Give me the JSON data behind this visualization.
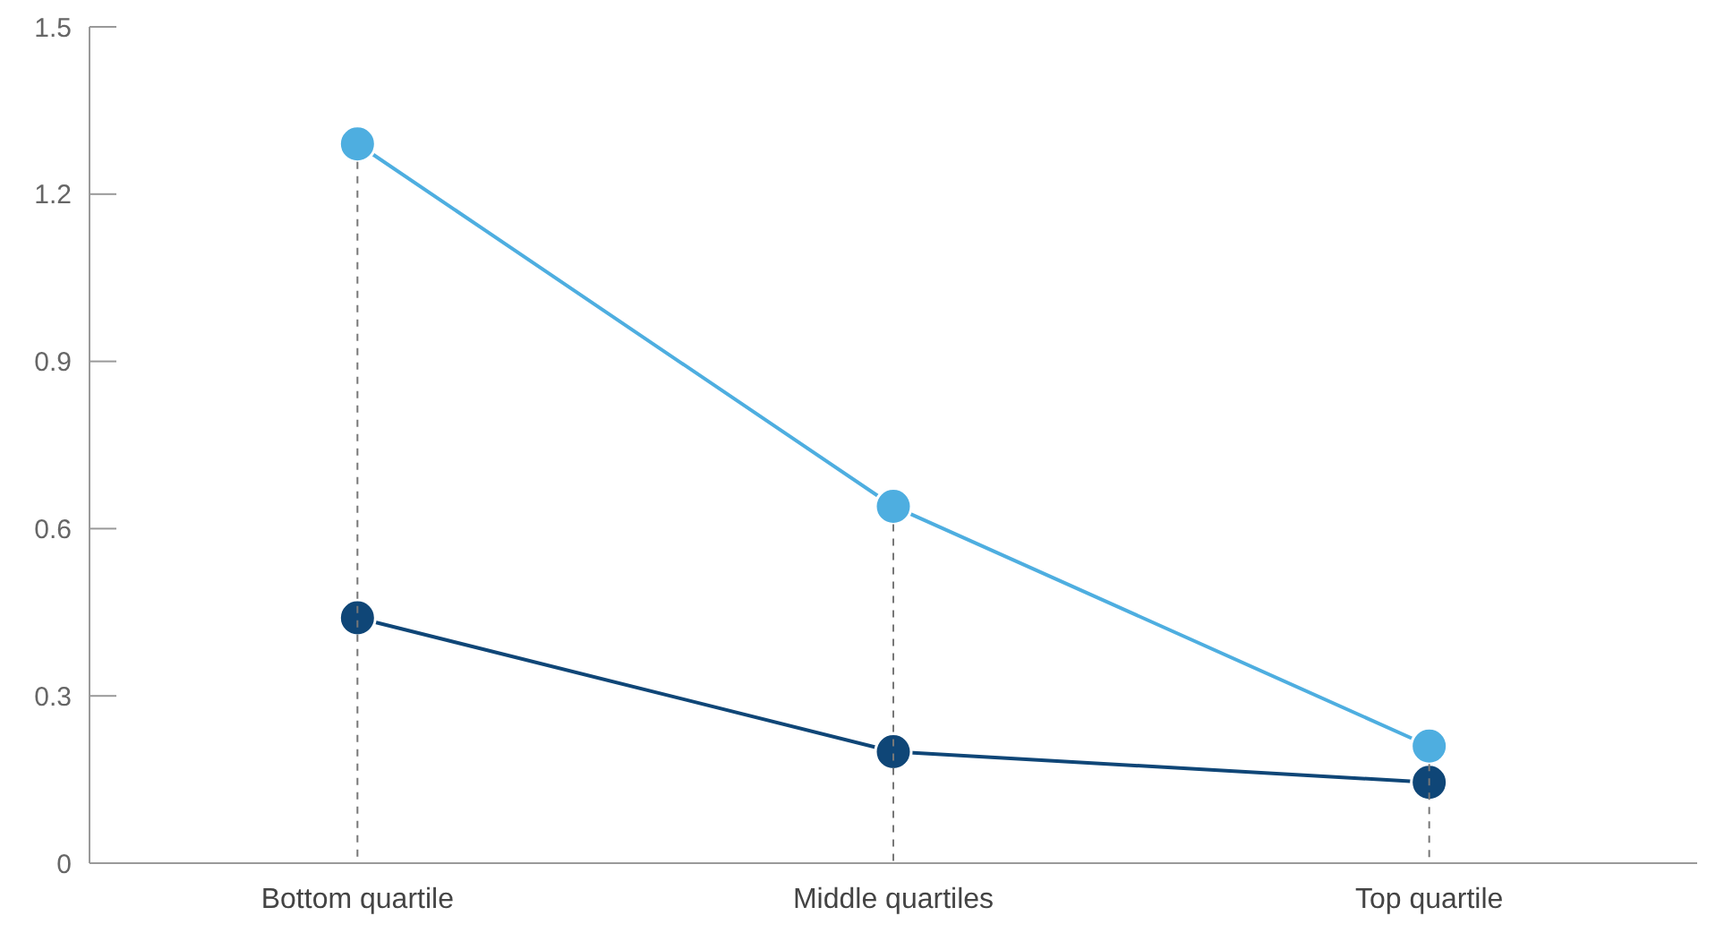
{
  "chart_data": {
    "type": "line",
    "categories": [
      "Bottom quartile",
      "Middle quartiles",
      "Top quartile"
    ],
    "series": [
      {
        "color": "#4eaee0",
        "values": [
          1.29,
          0.64,
          0.21
        ]
      },
      {
        "color": "#0f4677",
        "values": [
          0.44,
          0.2,
          0.145
        ]
      }
    ],
    "ylim": [
      0,
      1.5
    ],
    "yticks": [
      0,
      0.3,
      0.6,
      0.9,
      1.2,
      1.5
    ],
    "grid": "x",
    "marker": "circle",
    "line_style": "solid"
  }
}
